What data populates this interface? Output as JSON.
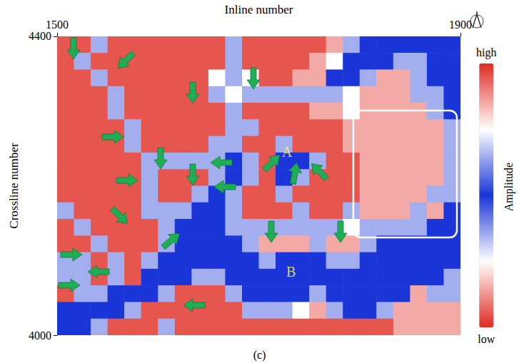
{
  "chart_data": {
    "type": "heatmap",
    "x_label": "Inline number",
    "y_label": "Crossline number",
    "caption": "(c)",
    "xlim": [
      1500,
      1900
    ],
    "xticks": [
      1500,
      1900
    ],
    "ylim": [
      4000,
      4400
    ],
    "yticks": [
      4000,
      4400
    ],
    "x": [
      1508.3,
      1525,
      1541.7,
      1558.3,
      1575,
      1591.7,
      1608.3,
      1625,
      1641.7,
      1658.3,
      1675,
      1691.7,
      1708.3,
      1725,
      1741.7,
      1758.3,
      1775,
      1791.7,
      1808.3,
      1825,
      1841.7,
      1858.3,
      1875,
      1891.7
    ],
    "y": [
      4388.9,
      4366.7,
      4344.4,
      4322.2,
      4300,
      4277.8,
      4255.6,
      4233.3,
      4211.1,
      4188.9,
      4166.7,
      4144.4,
      4122.2,
      4100,
      4077.8,
      4055.6,
      4033.3,
      4011.1
    ],
    "z": [
      [
        0.95,
        0.95,
        0.65,
        0.95,
        0.95,
        0.95,
        0.95,
        0.95,
        0.95,
        0.95,
        0.65,
        0.95,
        0.95,
        0.95,
        0.95,
        0.95,
        0.85,
        0.65,
        0.5,
        0.5,
        0.5,
        0.5,
        0.5,
        0.5
      ],
      [
        0.95,
        0.65,
        0.95,
        0.95,
        0.95,
        0.95,
        0.95,
        0.95,
        0.95,
        0.95,
        0.65,
        0.95,
        0.95,
        0.95,
        0.95,
        0.85,
        0.75,
        0.5,
        0.5,
        0.5,
        0.65,
        0.65,
        0.5,
        0.5
      ],
      [
        0.95,
        0.95,
        0.65,
        0.95,
        0.95,
        0.95,
        0.95,
        0.95,
        0.95,
        0.75,
        0.65,
        0.75,
        0.95,
        0.95,
        0.85,
        0.85,
        0.5,
        0.5,
        0.65,
        0.85,
        0.85,
        0.65,
        0.5,
        0.5
      ],
      [
        0.95,
        0.95,
        0.95,
        0.65,
        0.95,
        0.95,
        0.95,
        0.95,
        0.95,
        0.65,
        0.75,
        0.65,
        0.65,
        0.65,
        0.65,
        0.65,
        0.65,
        0.75,
        0.85,
        0.85,
        0.85,
        0.65,
        0.65,
        0.5
      ],
      [
        0.95,
        0.95,
        0.95,
        0.65,
        0.95,
        0.95,
        0.95,
        0.95,
        0.95,
        0.95,
        0.65,
        0.95,
        0.95,
        0.95,
        0.95,
        0.85,
        0.85,
        0.75,
        0.85,
        0.85,
        0.85,
        0.85,
        0.65,
        0.5
      ],
      [
        0.95,
        0.95,
        0.95,
        0.95,
        0.65,
        0.95,
        0.95,
        0.95,
        0.95,
        0.95,
        0.65,
        0.65,
        0.95,
        0.95,
        0.95,
        0.95,
        0.95,
        0.85,
        0.85,
        0.85,
        0.85,
        0.85,
        0.85,
        0.65
      ],
      [
        0.95,
        0.95,
        0.95,
        0.95,
        0.65,
        0.95,
        0.95,
        0.95,
        0.95,
        0.65,
        0.65,
        0.95,
        0.95,
        0.65,
        0.95,
        0.95,
        0.95,
        0.85,
        0.85,
        0.85,
        0.85,
        0.85,
        0.85,
        0.65
      ],
      [
        0.95,
        0.95,
        0.95,
        0.95,
        0.95,
        0.65,
        0.65,
        0.65,
        0.65,
        0.65,
        0.5,
        0.65,
        0.95,
        0.5,
        0.5,
        0.65,
        0.95,
        0.95,
        0.85,
        0.85,
        0.85,
        0.85,
        0.85,
        0.65
      ],
      [
        0.95,
        0.95,
        0.95,
        0.95,
        0.95,
        0.65,
        0.95,
        0.95,
        0.95,
        0.65,
        0.5,
        0.65,
        0.95,
        0.5,
        0.65,
        0.95,
        0.95,
        0.95,
        0.85,
        0.85,
        0.85,
        0.85,
        0.85,
        0.65
      ],
      [
        0.95,
        0.95,
        0.95,
        0.95,
        0.95,
        0.65,
        0.95,
        0.95,
        0.65,
        0.5,
        0.65,
        0.95,
        0.95,
        0.65,
        0.95,
        0.95,
        0.95,
        0.95,
        0.85,
        0.85,
        0.85,
        0.85,
        0.65,
        0.65
      ],
      [
        0.65,
        0.95,
        0.95,
        0.95,
        0.95,
        0.65,
        0.65,
        0.65,
        0.5,
        0.5,
        0.65,
        0.95,
        0.95,
        0.95,
        0.65,
        0.95,
        0.95,
        0.65,
        0.85,
        0.85,
        0.85,
        0.65,
        0.85,
        0.5
      ],
      [
        0.95,
        0.65,
        0.95,
        0.95,
        0.95,
        0.95,
        0.65,
        0.5,
        0.5,
        0.5,
        0.65,
        0.65,
        0.65,
        0.65,
        0.65,
        0.65,
        0.65,
        0.75,
        0.65,
        0.65,
        0.65,
        0.65,
        0.5,
        0.5
      ],
      [
        0.95,
        0.95,
        0.65,
        0.95,
        0.95,
        0.95,
        0.65,
        0.5,
        0.5,
        0.5,
        0.5,
        0.65,
        0.85,
        0.85,
        0.85,
        0.65,
        0.85,
        0.85,
        0.65,
        0.5,
        0.5,
        0.5,
        0.5,
        0.5
      ],
      [
        0.65,
        0.65,
        0.95,
        0.65,
        0.95,
        0.65,
        0.5,
        0.5,
        0.5,
        0.5,
        0.5,
        0.5,
        0.65,
        0.5,
        0.5,
        0.5,
        0.65,
        0.65,
        0.5,
        0.5,
        0.5,
        0.5,
        0.5,
        0.5
      ],
      [
        0.65,
        0.65,
        0.95,
        0.65,
        0.95,
        0.5,
        0.5,
        0.5,
        0.65,
        0.65,
        0.5,
        0.5,
        0.5,
        0.5,
        0.5,
        0.5,
        0.5,
        0.5,
        0.5,
        0.5,
        0.5,
        0.5,
        0.5,
        0.65
      ],
      [
        0.95,
        0.65,
        0.65,
        0.5,
        0.5,
        0.5,
        0.65,
        0.95,
        0.95,
        0.95,
        0.65,
        0.5,
        0.5,
        0.5,
        0.5,
        0.65,
        0.5,
        0.5,
        0.5,
        0.5,
        0.5,
        0.85,
        0.65,
        0.65
      ],
      [
        0.5,
        0.5,
        0.5,
        0.5,
        0.65,
        0.95,
        0.95,
        0.95,
        0.95,
        0.95,
        0.95,
        0.65,
        0.65,
        0.65,
        0.75,
        0.85,
        0.65,
        0.5,
        0.5,
        0.65,
        0.85,
        0.85,
        0.85,
        0.85
      ],
      [
        0.5,
        0.5,
        0.65,
        0.95,
        0.95,
        0.95,
        0.65,
        0.95,
        0.95,
        0.95,
        0.95,
        0.95,
        0.95,
        0.95,
        0.95,
        0.95,
        0.95,
        0.95,
        0.95,
        0.95,
        0.85,
        0.85,
        0.85,
        0.85
      ]
    ],
    "colorbar_label": "Amplitude",
    "colorbar_range": [
      0,
      1
    ],
    "colorbar_ticks": [
      {
        "value": 0,
        "label": "low"
      },
      {
        "value": 1,
        "label": "high"
      }
    ],
    "annotations": [
      {
        "text": "A",
        "x": 1728,
        "y": 4245
      },
      {
        "text": "B",
        "x": 1732,
        "y": 4085
      }
    ]
  }
}
